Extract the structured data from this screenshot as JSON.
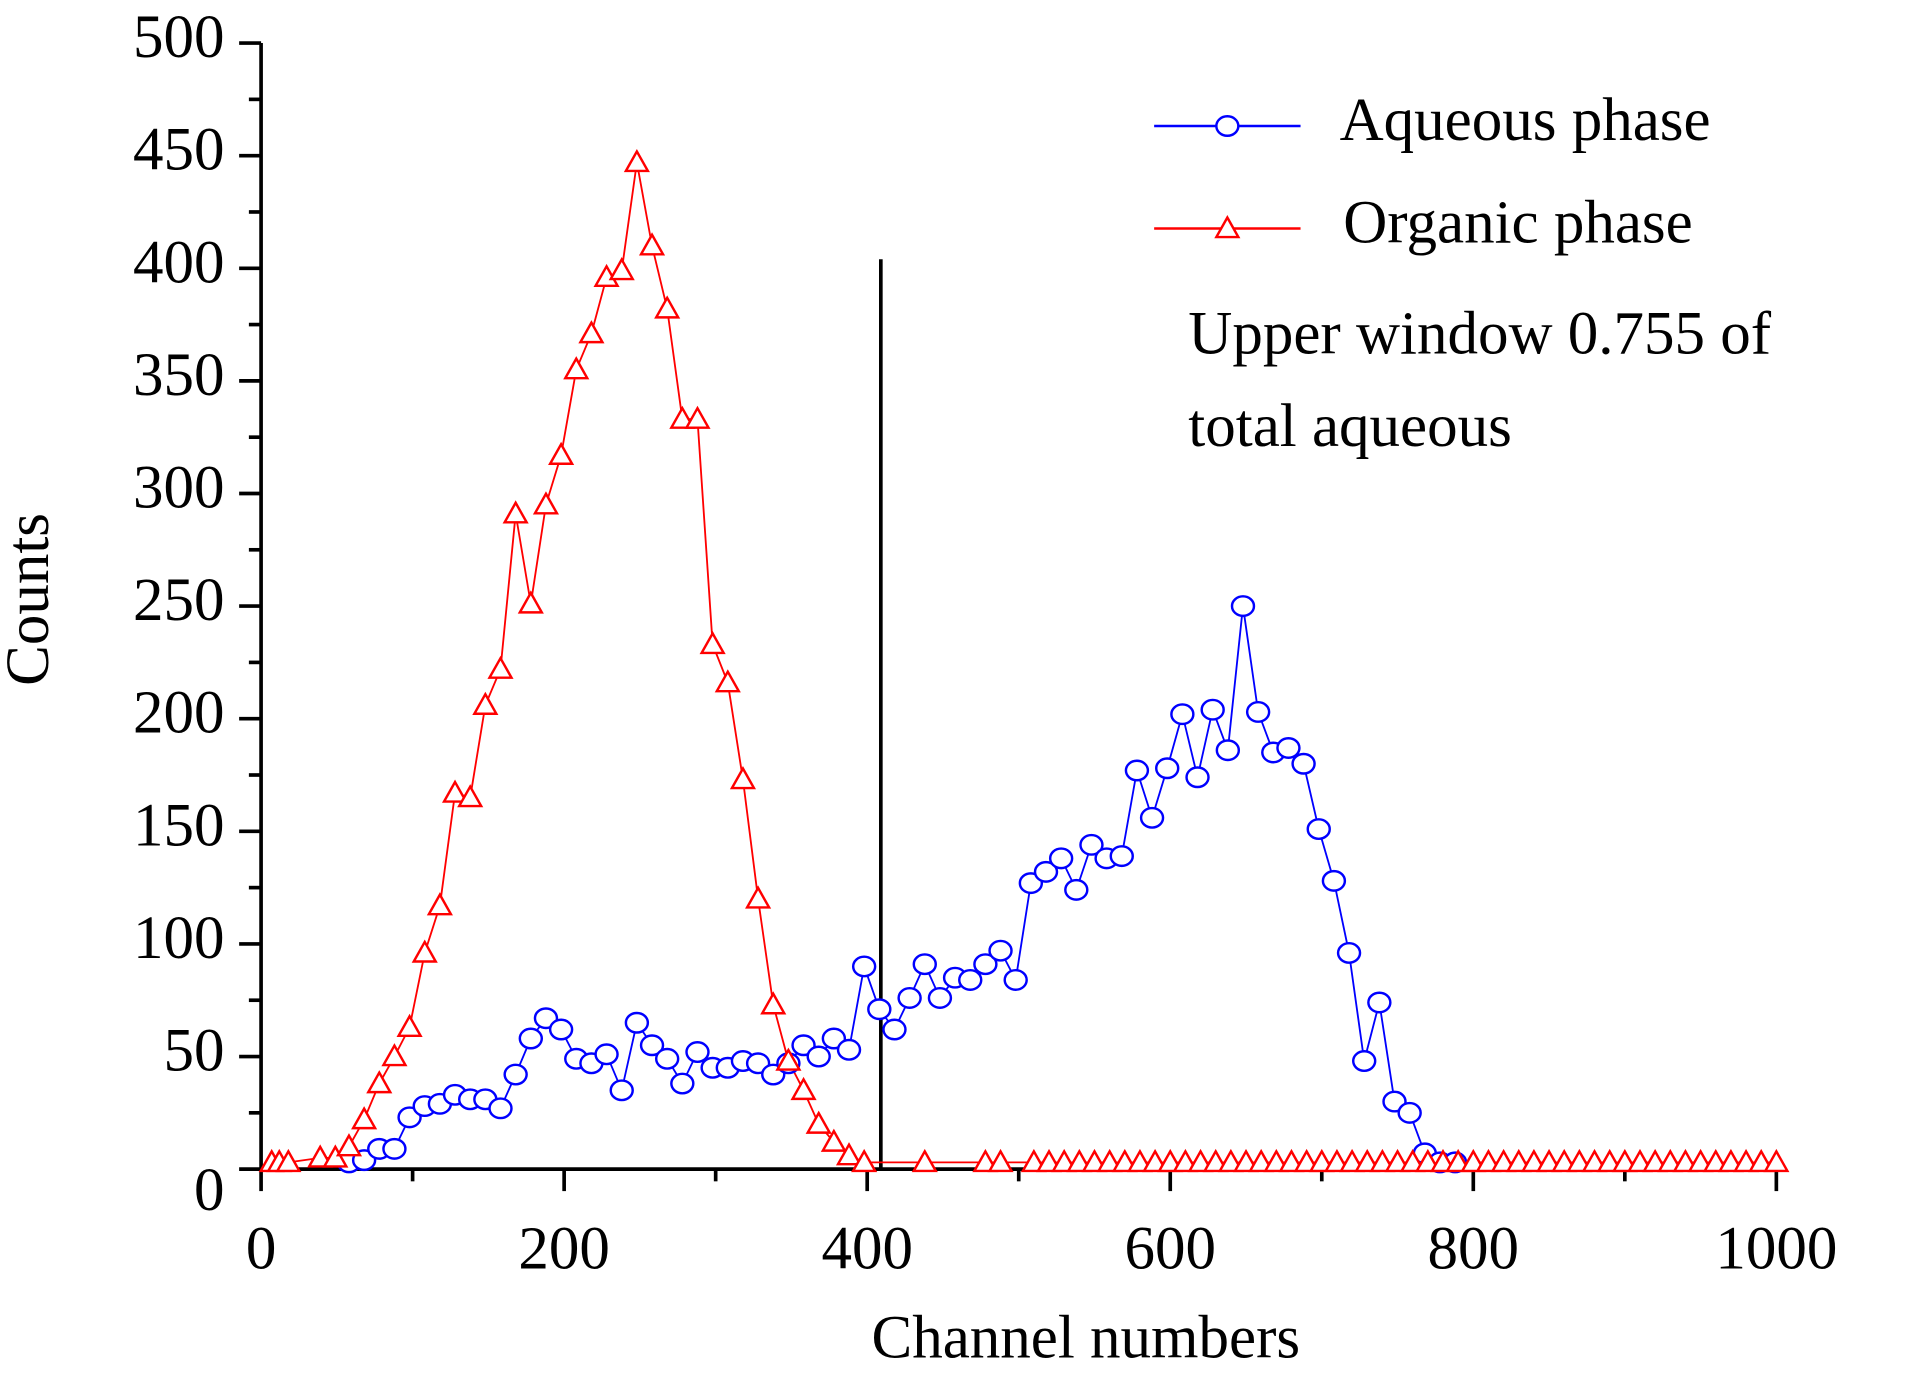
{
  "chart_data": {
    "type": "scatter-line",
    "x_label": "Channel numbers",
    "y_label": "Counts",
    "xlim": [
      0,
      1000
    ],
    "xticks": [
      0,
      200,
      400,
      600,
      800,
      1000
    ],
    "xminorticks": [
      100,
      300,
      500,
      700,
      900
    ],
    "ylim": [
      0,
      500
    ],
    "yticks": [
      0,
      50,
      100,
      150,
      200,
      250,
      300,
      350,
      400,
      450,
      500
    ],
    "yminorticks": [
      25,
      75,
      125,
      175,
      225,
      275,
      325,
      375,
      425,
      475
    ],
    "legend": "top-right",
    "annotation": [
      "Upper window 0.755 of",
      "total aqueous"
    ],
    "vertical_line": {
      "x": 409,
      "ymax": 404
    },
    "series": [
      {
        "name": "Aqueous phase",
        "color": "#0000ff",
        "marker": "circle",
        "x": [
          58,
          68,
          78,
          88,
          98,
          108,
          118,
          128,
          138,
          148,
          158,
          168,
          178,
          188,
          198,
          208,
          218,
          228,
          238,
          248,
          258,
          268,
          278,
          288,
          298,
          308,
          318,
          328,
          338,
          348,
          358,
          368,
          378,
          388,
          398,
          408,
          418,
          428,
          438,
          448,
          458,
          468,
          478,
          488,
          498,
          508,
          518,
          528,
          538,
          548,
          558,
          568,
          578,
          588,
          598,
          608,
          618,
          628,
          638,
          648,
          658,
          668,
          678,
          688,
          698,
          708,
          718,
          728,
          738,
          748,
          758,
          768,
          778,
          788
        ],
        "values": [
          3,
          4,
          9,
          9,
          23,
          28,
          29,
          33,
          31,
          31,
          27,
          42,
          58,
          67,
          62,
          49,
          47,
          51,
          35,
          65,
          55,
          49,
          38,
          52,
          45,
          45,
          48,
          47,
          42,
          47,
          55,
          50,
          58,
          53,
          90,
          71,
          62,
          76,
          91,
          76,
          85,
          84,
          91,
          97,
          84,
          127,
          132,
          138,
          124,
          144,
          138,
          139,
          177,
          156,
          178,
          202,
          174,
          204,
          186,
          250,
          203,
          185,
          187,
          180,
          151,
          128,
          96,
          48,
          74,
          30,
          25,
          7,
          3,
          3
        ]
      },
      {
        "name": "Organic phase",
        "color": "#ff0000",
        "marker": "triangle",
        "x": [
          7,
          12,
          18,
          39,
          49,
          58,
          68,
          78,
          88,
          98,
          108,
          118,
          128,
          138,
          148,
          158,
          168,
          178,
          188,
          198,
          208,
          218,
          228,
          238,
          248,
          258,
          268,
          278,
          288,
          298,
          308,
          318,
          328,
          338,
          348,
          358,
          368,
          378,
          388,
          398,
          438,
          478,
          488,
          510,
          520,
          530,
          540,
          550,
          560,
          570,
          580,
          590,
          600,
          610,
          620,
          630,
          640,
          650,
          660,
          670,
          680,
          690,
          700,
          710,
          720,
          730,
          740,
          750,
          760,
          770,
          780,
          790,
          800,
          810,
          820,
          830,
          840,
          850,
          860,
          870,
          880,
          890,
          900,
          910,
          920,
          930,
          940,
          950,
          960,
          970,
          980,
          990,
          1000
        ],
        "values": [
          3,
          3,
          3,
          5,
          5,
          10,
          22,
          38,
          50,
          63,
          96,
          117,
          167,
          165,
          206,
          222,
          291,
          251,
          295,
          317,
          355,
          371,
          396,
          399,
          447,
          410,
          382,
          333,
          333,
          233,
          216,
          173,
          120,
          73,
          48,
          35,
          20,
          12,
          6,
          3,
          3,
          3,
          3,
          3,
          3,
          3,
          3,
          3,
          3,
          3,
          3,
          3,
          3,
          3,
          3,
          3,
          3,
          3,
          3,
          3,
          3,
          3,
          3,
          3,
          3,
          3,
          3,
          3,
          3,
          3,
          3,
          3,
          3,
          3,
          3,
          3,
          3,
          3,
          3,
          3,
          3,
          3,
          3,
          3,
          3,
          3,
          3,
          3,
          3,
          3,
          3,
          3,
          3
        ]
      }
    ]
  }
}
